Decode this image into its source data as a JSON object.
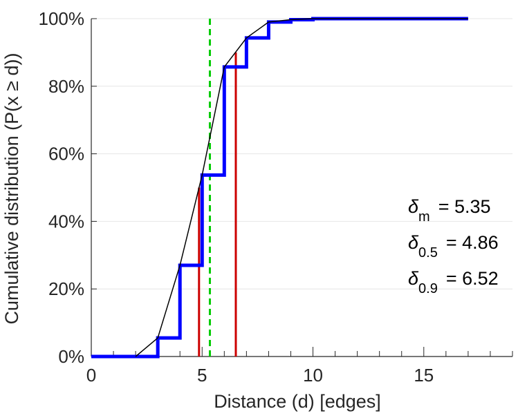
{
  "chart_data": {
    "type": "line",
    "title": "",
    "xlabel": "Distance (d) [edges]",
    "ylabel": "Cumulative distribution (P(x ≥ d))",
    "xlim": [
      0,
      19
    ],
    "ylim": [
      0,
      1
    ],
    "x_ticks": [
      0,
      5,
      10,
      15
    ],
    "x_tick_labels": [
      "0",
      "5",
      "10",
      "15"
    ],
    "y_ticks": [
      0,
      0.2,
      0.4,
      0.6,
      0.8,
      1.0
    ],
    "y_tick_labels": [
      "0%",
      "20%",
      "40%",
      "60%",
      "80%",
      "100%"
    ],
    "grid": "horizontal",
    "legend": "none",
    "series": [
      {
        "style": "step",
        "color": "#0000ff",
        "x": [
          0,
          1,
          2,
          3,
          4,
          5,
          6,
          7,
          8,
          9,
          10,
          11,
          12,
          13,
          14,
          15,
          16,
          17
        ],
        "y": [
          0,
          0,
          0,
          0.055,
          0.27,
          0.537,
          0.857,
          0.943,
          0.99,
          0.997,
          1.0,
          1.0,
          1.0,
          1.0,
          1.0,
          1.0,
          1.0,
          1.0
        ]
      },
      {
        "style": "line",
        "color": "#000000",
        "x": [
          2,
          3,
          4,
          5,
          6,
          7,
          8,
          9,
          10,
          11,
          12,
          13,
          14,
          15,
          16,
          17
        ],
        "y": [
          0,
          0.055,
          0.27,
          0.537,
          0.857,
          0.943,
          0.99,
          0.997,
          1.0,
          1.0,
          1.0,
          1.0,
          1.0,
          1.0,
          1.0,
          1.0
        ]
      }
    ],
    "vlines": [
      {
        "x": 5.35,
        "y_end": 1.0,
        "color": "#00cc00",
        "style": "dashed"
      },
      {
        "x": 4.86,
        "y_end": 0.5,
        "color": "#cc0000",
        "style": "solid"
      },
      {
        "x": 6.52,
        "y_end": 0.9,
        "color": "#cc0000",
        "style": "solid"
      }
    ],
    "annotations": [
      {
        "symbol": "δ",
        "sub": "m",
        "text": "= 5.35"
      },
      {
        "symbol": "δ",
        "sub": "0.5",
        "text": "= 4.86"
      },
      {
        "symbol": "δ",
        "sub": "0.9",
        "text": "= 6.52"
      }
    ]
  }
}
